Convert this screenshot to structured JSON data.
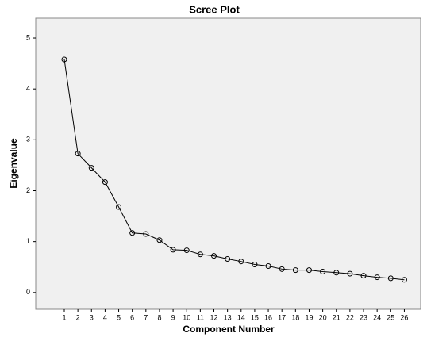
{
  "chart_data": {
    "type": "line",
    "title": "Scree Plot",
    "x_label": "Component Number",
    "y_label": "Eigenvalue",
    "x": [
      1,
      2,
      3,
      4,
      5,
      6,
      7,
      8,
      9,
      10,
      11,
      12,
      13,
      14,
      15,
      16,
      17,
      18,
      19,
      20,
      21,
      22,
      23,
      24,
      25,
      26
    ],
    "series": [
      {
        "name": "Eigenvalue",
        "color": "#000000",
        "values": [
          4.58,
          2.73,
          2.45,
          2.17,
          1.68,
          1.17,
          1.15,
          1.03,
          0.84,
          0.83,
          0.75,
          0.72,
          0.66,
          0.61,
          0.55,
          0.52,
          0.46,
          0.44,
          0.44,
          0.41,
          0.39,
          0.37,
          0.33,
          0.3,
          0.28,
          0.25
        ]
      }
    ],
    "xlim": [
      -1.1,
      27.2
    ],
    "xticks": [
      1,
      2,
      3,
      4,
      5,
      6,
      7,
      8,
      9,
      10,
      11,
      12,
      13,
      14,
      15,
      16,
      17,
      18,
      19,
      20,
      21,
      22,
      23,
      24,
      25,
      26
    ],
    "ylim": [
      -0.33,
      5.39
    ],
    "yticks": [
      0,
      1,
      2,
      3,
      4,
      5
    ],
    "grid": false
  }
}
